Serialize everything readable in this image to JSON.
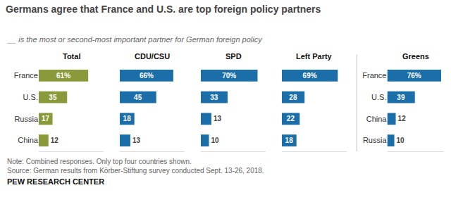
{
  "title": "Germans agree that France and U.S. are top foreign policy partners",
  "subtitle": "__ is the most or second-most important partner for German foreign policy",
  "annotations": [
    "Note: Combined responses. Only top four countries shown.",
    "Source: German results from Körber-Stiftung survey conducted Sept. 13-26, 2018.",
    "PEW RESEARCH CENTER"
  ],
  "chart_data": [
    {
      "type": "bar",
      "orientation": "horizontal",
      "title": "Total",
      "categories": [
        "France",
        "U.S.",
        "Russia",
        "China"
      ],
      "values": [
        61,
        35,
        17,
        12
      ],
      "value_labels": [
        "61%",
        "35",
        "17",
        "12"
      ],
      "color": "#8a9a3a",
      "xlim": [
        0,
        80
      ],
      "data_labels": true,
      "tick_labels": "y",
      "grid": false
    },
    {
      "type": "bar",
      "orientation": "horizontal",
      "title": "CDU/CSU",
      "categories": [
        "France",
        "U.S.",
        "Russia",
        "China"
      ],
      "values": [
        66,
        45,
        18,
        13
      ],
      "value_labels": [
        "66%",
        "45",
        "18",
        "13"
      ],
      "color": "#1b6ea8",
      "xlim": [
        0,
        80
      ],
      "data_labels": true,
      "tick_labels": false,
      "grid": false
    },
    {
      "type": "bar",
      "orientation": "horizontal",
      "title": "SPD",
      "categories": [
        "France",
        "U.S.",
        "Russia",
        "China"
      ],
      "values": [
        70,
        33,
        13,
        10
      ],
      "value_labels": [
        "70%",
        "33",
        "13",
        "10"
      ],
      "color": "#1b6ea8",
      "xlim": [
        0,
        80
      ],
      "data_labels": true,
      "tick_labels": false,
      "grid": false
    },
    {
      "type": "bar",
      "orientation": "horizontal",
      "title": "Left Party",
      "categories": [
        "France",
        "U.S.",
        "Russia",
        "China"
      ],
      "values": [
        69,
        28,
        22,
        18
      ],
      "value_labels": [
        "69%",
        "28",
        "22",
        "18"
      ],
      "color": "#1b6ea8",
      "xlim": [
        0,
        80
      ],
      "data_labels": true,
      "tick_labels": false,
      "grid": false
    },
    {
      "type": "bar",
      "orientation": "horizontal",
      "title": "Greens",
      "categories": [
        "France",
        "U.S.",
        "China",
        "Russia"
      ],
      "values": [
        76,
        39,
        12,
        10
      ],
      "value_labels": [
        "76%",
        "39",
        "12",
        "10"
      ],
      "color": "#1b6ea8",
      "xlim": [
        0,
        80
      ],
      "data_labels": true,
      "tick_labels": "y",
      "grid": false
    }
  ]
}
